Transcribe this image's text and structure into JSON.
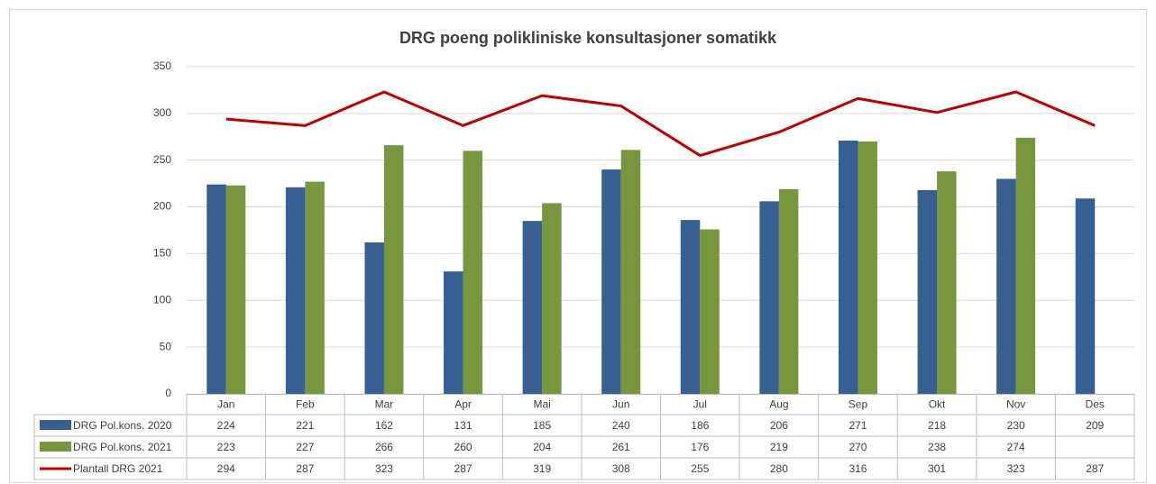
{
  "chart_data": {
    "type": "bar",
    "title": "DRG poeng polikliniske konsultasjoner somatikk",
    "categories": [
      "Jan",
      "Feb",
      "Mar",
      "Apr",
      "Mai",
      "Jun",
      "Jul",
      "Aug",
      "Sep",
      "Okt",
      "Nov",
      "Des"
    ],
    "series": [
      {
        "name": "DRG Pol.kons. 2020",
        "type": "bar",
        "color": "#375f92",
        "values": [
          224,
          221,
          162,
          131,
          185,
          240,
          186,
          206,
          271,
          218,
          230,
          209
        ]
      },
      {
        "name": "DRG Pol.kons. 2021",
        "type": "bar",
        "color": "#77963e",
        "values": [
          223,
          227,
          266,
          260,
          204,
          261,
          176,
          219,
          270,
          238,
          274,
          null
        ]
      },
      {
        "name": "Plantall DRG 2021",
        "type": "line",
        "color": "#c00000",
        "values": [
          294,
          287,
          323,
          287,
          319,
          308,
          255,
          280,
          316,
          301,
          323,
          287
        ]
      }
    ],
    "ylim": [
      0,
      350
    ],
    "yticks": [
      0,
      50,
      100,
      150,
      200,
      250,
      300,
      350
    ],
    "grid": true,
    "data_table": true
  }
}
